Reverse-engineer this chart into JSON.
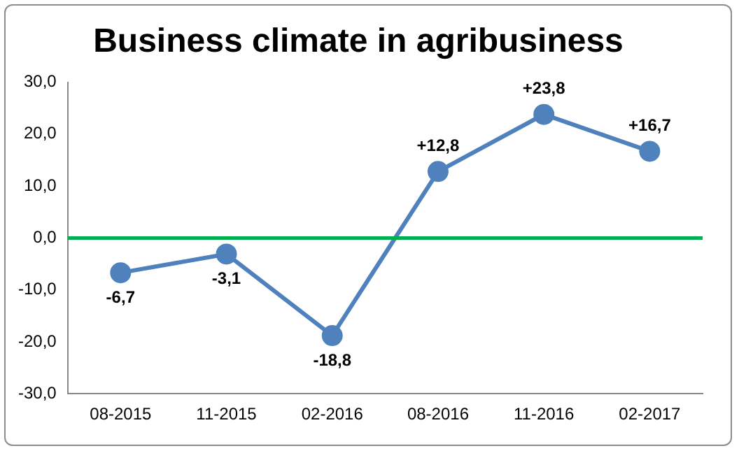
{
  "chart_data": {
    "type": "line",
    "title": "Business climate in agribusiness",
    "categories": [
      "08-2015",
      "11-2015",
      "02-2016",
      "08-2016",
      "11-2016",
      "02-2017"
    ],
    "values": [
      -6.7,
      -3.1,
      -18.8,
      12.8,
      23.8,
      16.7
    ],
    "value_labels": [
      "-6,7",
      "-3,1",
      "-18,8",
      "+12,8",
      "+23,8",
      "+16,7"
    ],
    "color": "#4f81bd",
    "marker": "circle",
    "ylim": [
      -30,
      30
    ],
    "yticks": [
      {
        "value": -30,
        "label": "-30,0"
      },
      {
        "value": -20,
        "label": "-20,0"
      },
      {
        "value": -10,
        "label": "-10,0"
      },
      {
        "value": 0,
        "label": "0,0"
      },
      {
        "value": 10,
        "label": "10,0"
      },
      {
        "value": 20,
        "label": "20,0"
      },
      {
        "value": 30,
        "label": "30,0"
      }
    ],
    "ref_lines": [
      {
        "axis": "y",
        "value": 0,
        "color": "#00b050"
      }
    ],
    "grid": false,
    "legend": false
  }
}
